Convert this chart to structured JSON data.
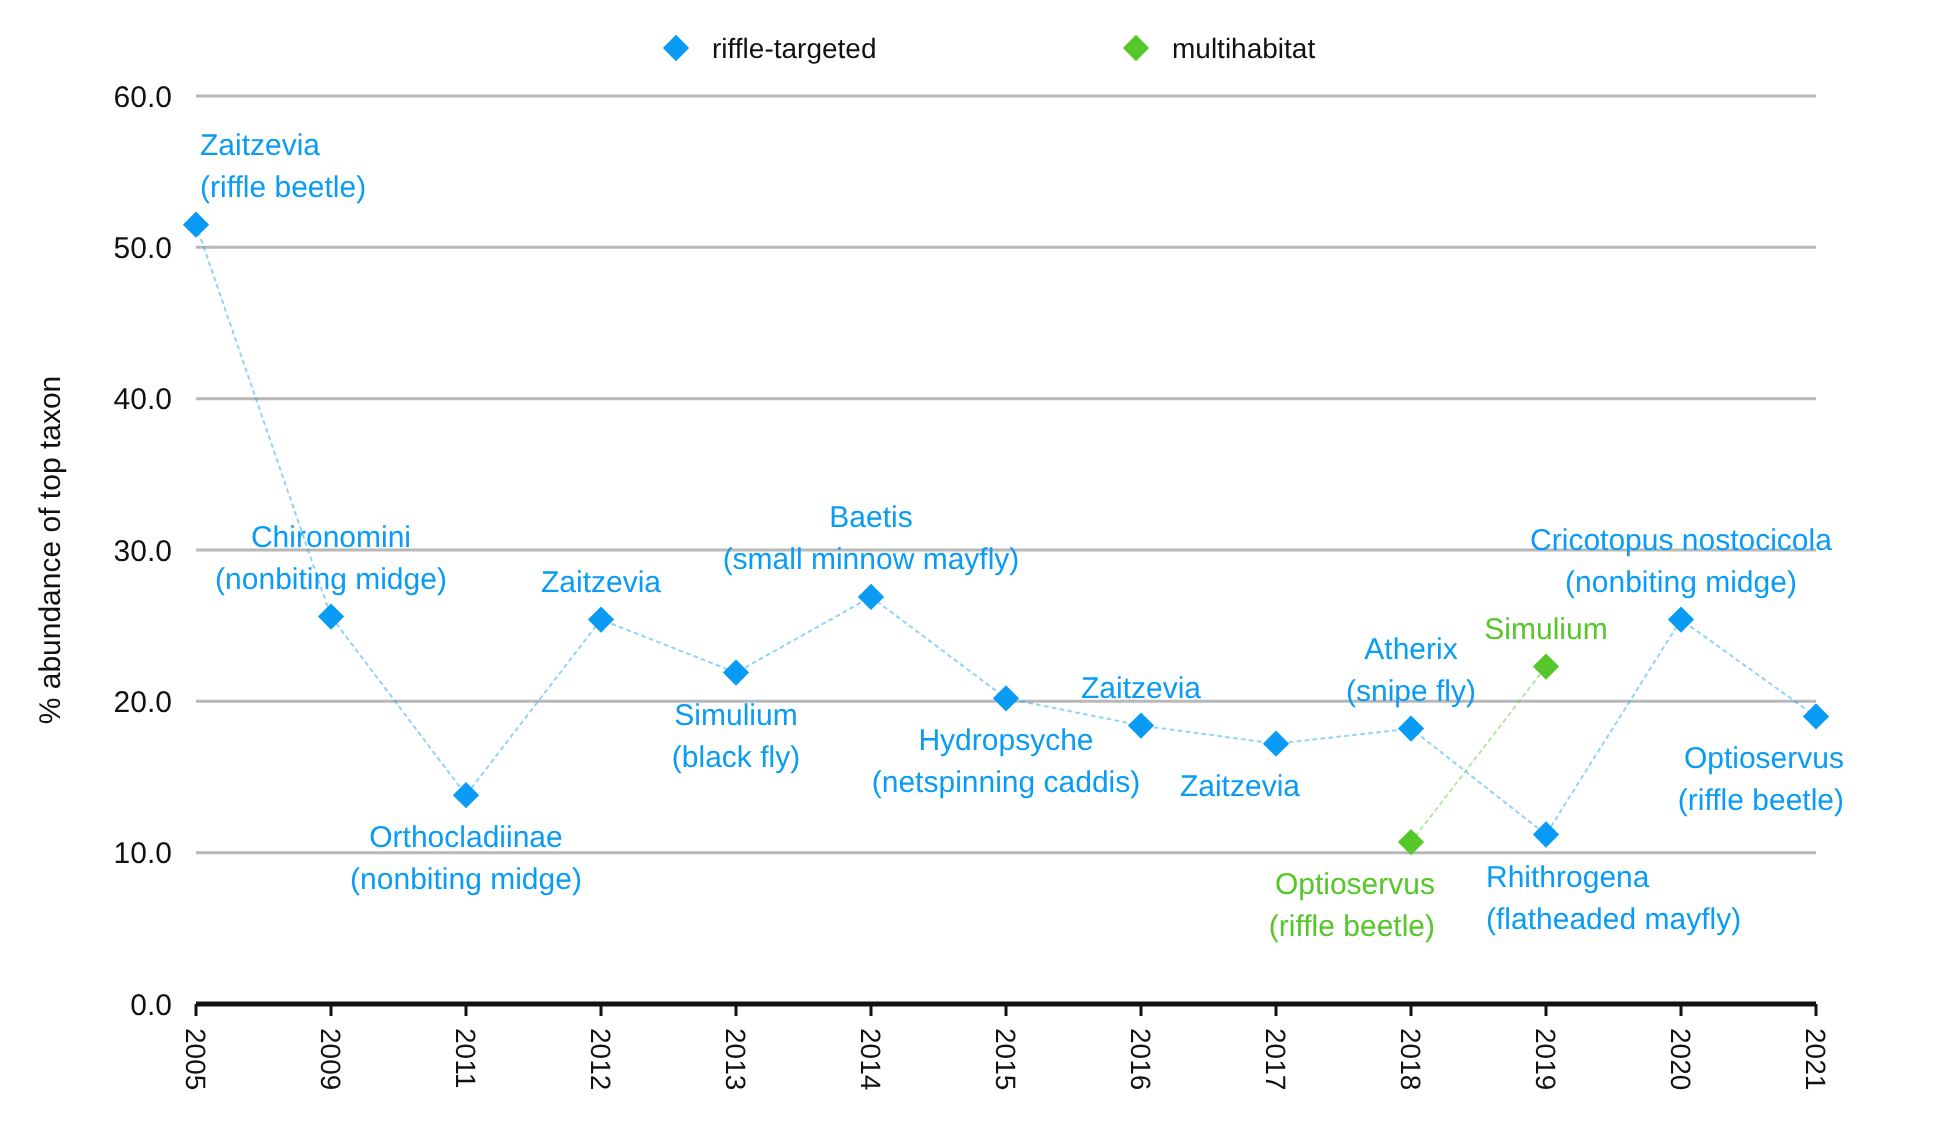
{
  "chart_data": {
    "type": "line",
    "ylabel": "% abundance of top taxon",
    "categories": [
      "2005",
      "2009",
      "2011",
      "2012",
      "2013",
      "2014",
      "2015",
      "2016",
      "2017",
      "2018",
      "2019",
      "2020",
      "2021"
    ],
    "series": [
      {
        "name": "riffle-targeted",
        "color": "#0a9cf5",
        "values": [
          51.5,
          25.6,
          13.8,
          25.4,
          21.9,
          26.9,
          20.2,
          18.4,
          17.2,
          18.2,
          11.2,
          25.4,
          19.0
        ]
      },
      {
        "name": "multihabitat",
        "color": "#56c72a",
        "values": [
          null,
          null,
          null,
          null,
          null,
          null,
          null,
          null,
          null,
          10.7,
          22.3,
          null,
          null
        ]
      }
    ],
    "ylim": [
      0,
      60
    ],
    "yticks": [
      {
        "value": 0,
        "label": "0.0"
      },
      {
        "value": 10,
        "label": "10.0"
      },
      {
        "value": 20,
        "label": "20.0"
      },
      {
        "value": 30,
        "label": "30.0"
      },
      {
        "value": 40,
        "label": "40.0"
      },
      {
        "value": 50,
        "label": "50.0"
      },
      {
        "value": 60,
        "label": "60.0"
      }
    ],
    "grid": "y",
    "legend": "top",
    "marker": "diamond",
    "line_style": "dotted",
    "annotations": [
      {
        "text": "Zaitzevia\n(riffle beetle)",
        "x": "2005",
        "y": 51.5
      },
      {
        "text": "Chironomini\n(nonbiting midge)",
        "x": "2009",
        "y": 25.6
      },
      {
        "text": "Orthocladiinae\n(nonbiting midge)",
        "x": "2011",
        "y": 13.8
      },
      {
        "text": "Zaitzevia",
        "x": "2012",
        "y": 25.4
      },
      {
        "text": "Simulium\n(black fly)",
        "x": "2013",
        "y": 21.9
      },
      {
        "text": "Baetis\n(small minnow mayfly)",
        "x": "2014",
        "y": 26.9
      },
      {
        "text": "Hydropsyche\n(netspinning caddis)",
        "x": "2015",
        "y": 20.2
      },
      {
        "text": "Zaitzevia",
        "x": "2016",
        "y": 18.4
      },
      {
        "text": "Zaitzevia",
        "x": "2017",
        "y": 17.2
      },
      {
        "text": "Atherix\n(snipe fly)",
        "x": "2018",
        "y": 18.2
      },
      {
        "text": "Optioservus\n(riffle beetle)",
        "x": "2018",
        "y": 10.7
      },
      {
        "text": "Rhithrogena\n(flatheaded mayfly)",
        "x": "2019",
        "y": 11.2
      },
      {
        "text": "Simulium",
        "x": "2019",
        "y": 22.3
      },
      {
        "text": "Cricotopus nostocicola\n(nonbiting midge)",
        "x": "2020",
        "y": 25.4
      },
      {
        "text": "Optioservus\n(riffle beetle)",
        "x": "2021",
        "y": 19.0
      }
    ]
  }
}
